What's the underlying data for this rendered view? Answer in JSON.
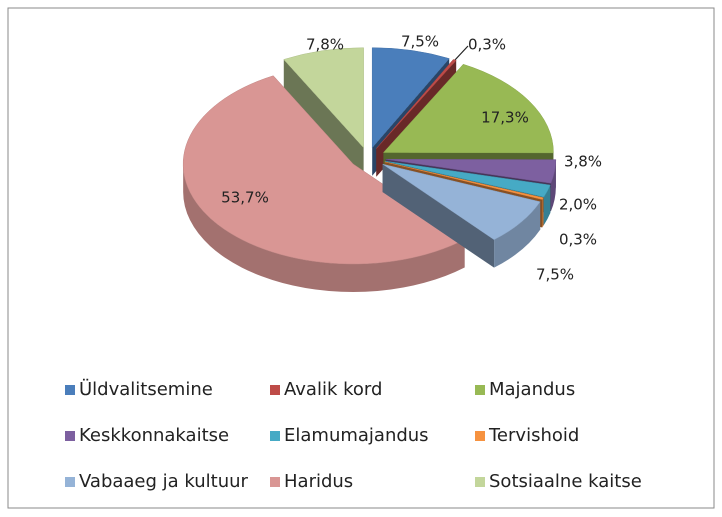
{
  "chart_data": {
    "type": "pie3d",
    "categories": [
      "Üldvalitsemine",
      "Avalik kord",
      "Majandus",
      "Keskkonnakaitse",
      "Elamumajandus",
      "Tervishoid",
      "Vabaaeg ja kultuur",
      "Haridus",
      "Sotsiaalne kaitse"
    ],
    "values": [
      7.5,
      0.3,
      17.3,
      3.8,
      2.0,
      0.3,
      7.5,
      53.7,
      7.8
    ],
    "value_labels": [
      "7,5%",
      "0,3%",
      "17,3%",
      "3,8%",
      "2,0%",
      "0,3%",
      "7,5%",
      "53,7%",
      "7,8%"
    ],
    "colors": [
      "#4a7ebb",
      "#be4b48",
      "#98b954",
      "#7d60a0",
      "#46aac5",
      "#f69240",
      "#95b3d7",
      "#d99694",
      "#c3d69b"
    ],
    "legend": "bottom"
  }
}
